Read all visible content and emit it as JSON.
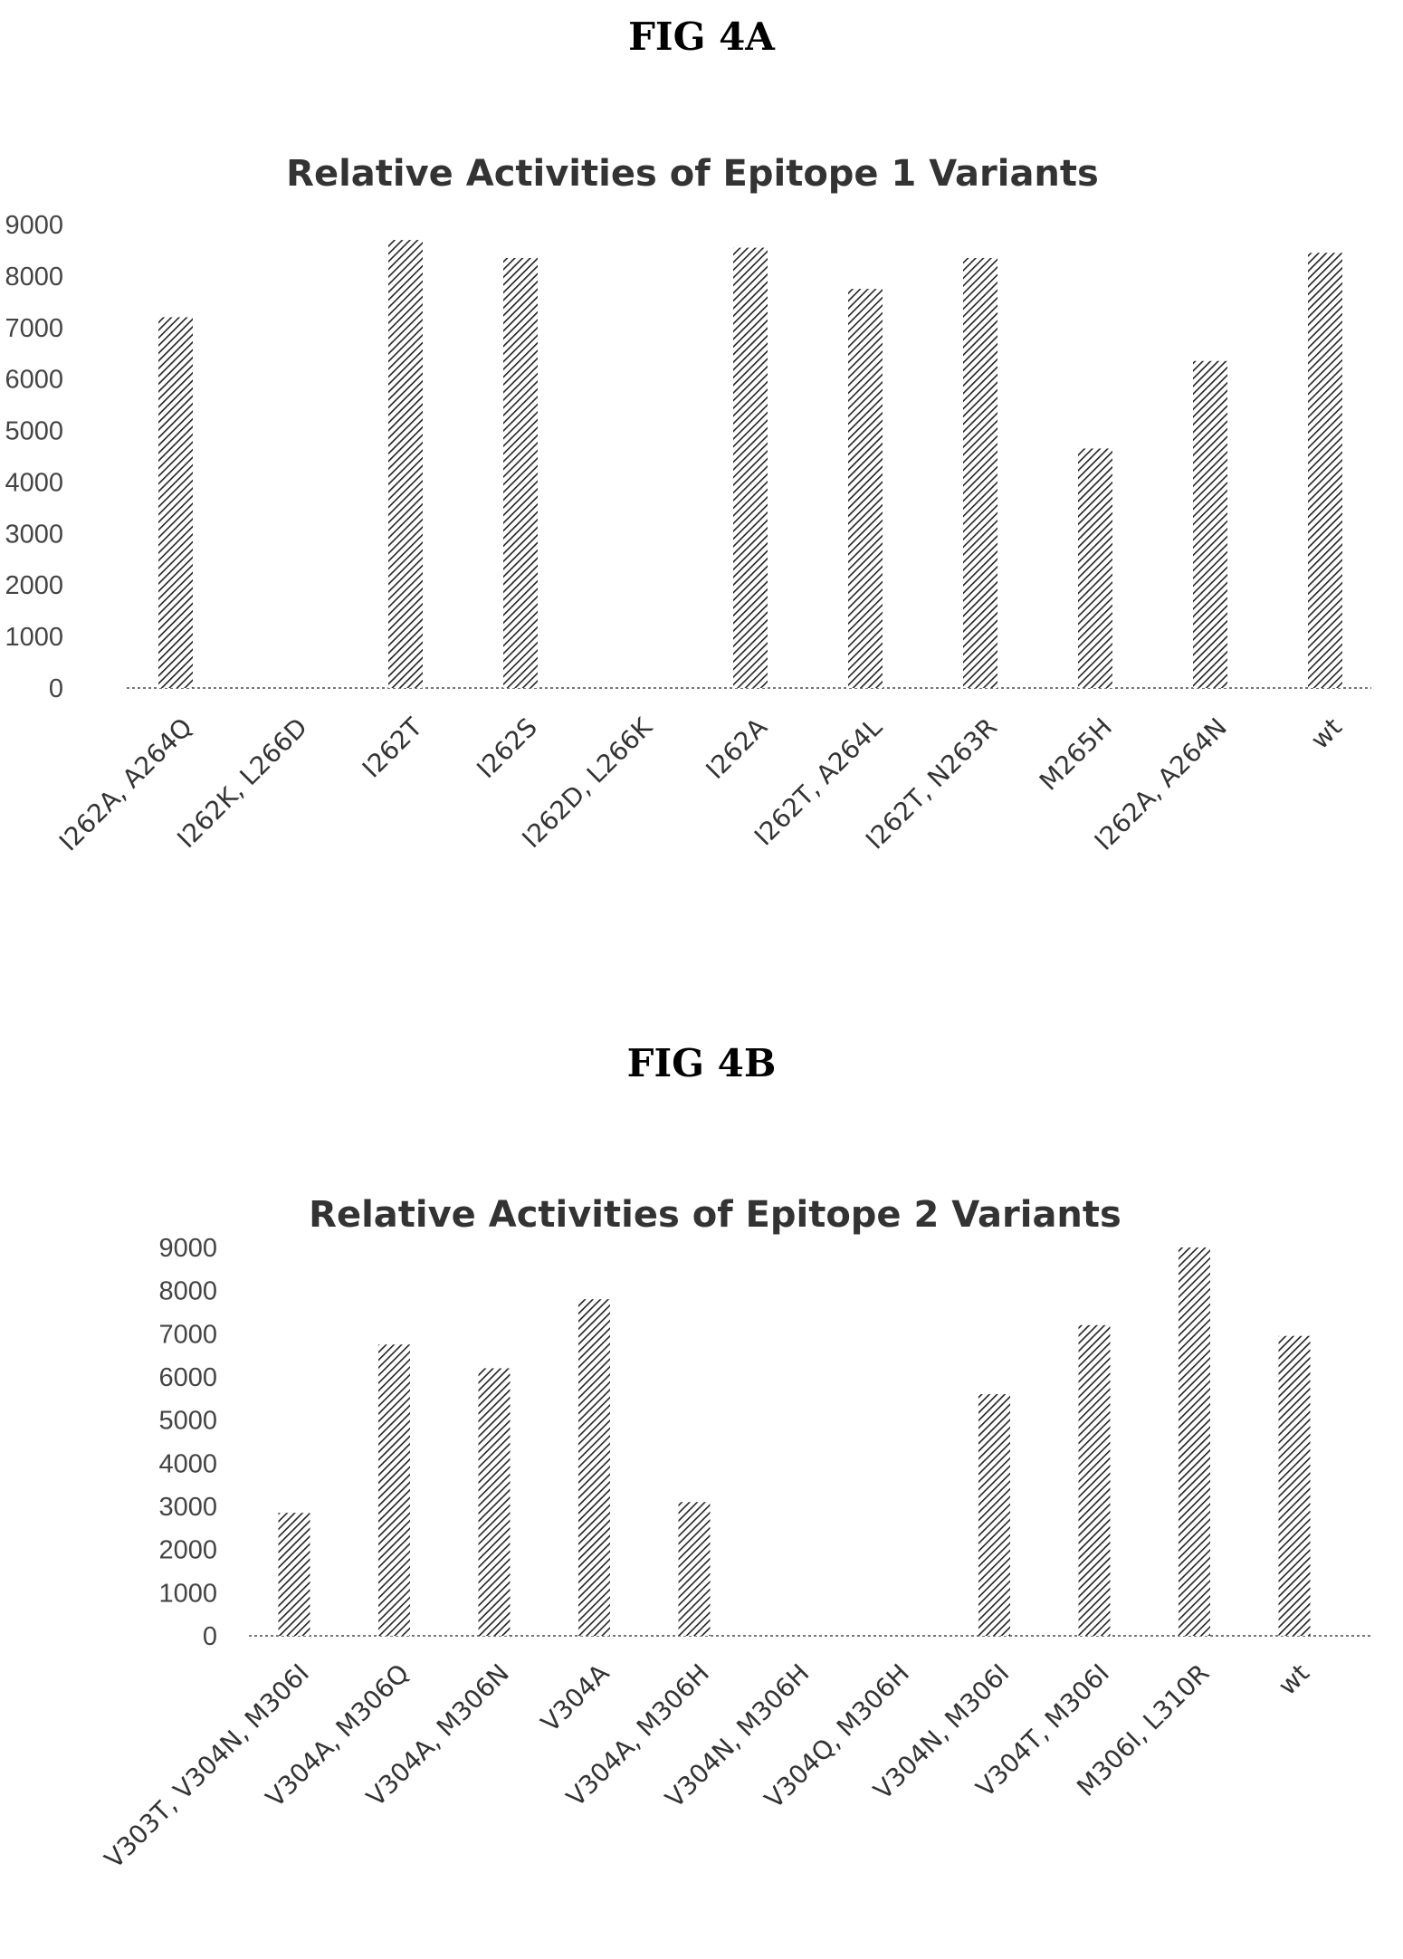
{
  "figures": {
    "a": {
      "label": "FIG 4A"
    },
    "b": {
      "label": "FIG 4B"
    }
  },
  "colors": {
    "bar_stroke": "#222222",
    "bar_fill": "#ffffff",
    "axis": "#777777"
  },
  "chart_data": [
    {
      "type": "bar",
      "title": "Relative Activities of Epitope 1 Variants",
      "xlabel": "",
      "ylabel": "",
      "ylim": [
        0,
        9000
      ],
      "yticks": [
        "0",
        "1000",
        "2000",
        "3000",
        "4000",
        "5000",
        "6000",
        "7000",
        "8000",
        "9000"
      ],
      "grid": false,
      "legend": "none",
      "bar_pattern": "diagonal-hatch",
      "categories": [
        "I262A, A264Q",
        "I262K, L266D",
        "I262T",
        "I262S",
        "I262D, L266K",
        "I262A",
        "I262T, A264L",
        "I262T, N263R",
        "M265H",
        "I262A, A264N",
        "wt"
      ],
      "values": [
        7200,
        0,
        8700,
        8350,
        0,
        8550,
        7750,
        8350,
        4650,
        6350,
        8450
      ]
    },
    {
      "type": "bar",
      "title": "Relative Activities of Epitope 2 Variants",
      "xlabel": "",
      "ylabel": "",
      "ylim": [
        0,
        9000
      ],
      "yticks": [
        "0",
        "1000",
        "2000",
        "3000",
        "4000",
        "5000",
        "6000",
        "7000",
        "8000",
        "9000"
      ],
      "grid": false,
      "legend": "none",
      "bar_pattern": "diagonal-hatch",
      "categories": [
        "V303T, V304N, M306I",
        "V304A, M306Q",
        "V304A, M306N",
        "V304A",
        "V304A, M306H",
        "V304N, M306H",
        "V304Q, M306H",
        "V304N, M306I",
        "V304T, M306I",
        "M306I, L310R",
        "wt"
      ],
      "values": [
        2850,
        6750,
        6200,
        7800,
        3100,
        0,
        0,
        5600,
        7200,
        9000,
        6950
      ]
    }
  ]
}
